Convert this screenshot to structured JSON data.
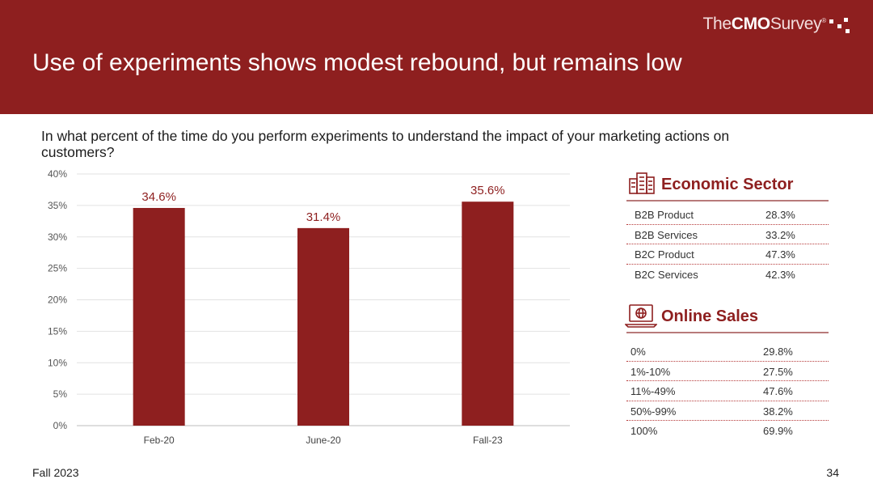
{
  "header": {
    "brand_the": "The",
    "brand_cmo": "CMO",
    "brand_survey": "Survey",
    "brand_reg": "®",
    "title": "Use of experiments shows modest rebound, but remains low"
  },
  "question": "In what percent of the time do you perform experiments to understand the impact of your marketing actions on customers?",
  "chart_data": {
    "type": "bar",
    "categories": [
      "Feb-20",
      "June-20",
      "Fall-23"
    ],
    "values": [
      34.6,
      31.4,
      35.6
    ],
    "data_labels": [
      "34.6%",
      "31.4%",
      "35.6%"
    ],
    "ylim": [
      0,
      40
    ],
    "yticks": [
      0,
      5,
      10,
      15,
      20,
      25,
      30,
      35,
      40
    ],
    "ytick_labels": [
      "0%",
      "5%",
      "10%",
      "15%",
      "20%",
      "25%",
      "30%",
      "35%",
      "40%"
    ],
    "grid": true,
    "bar_color": "#8e1f1f",
    "label_color": "#8e1f1f"
  },
  "economic_sector": {
    "title": "Economic Sector",
    "icon": "buildings-icon",
    "rows": [
      {
        "label": "B2B Product",
        "value": "28.3%"
      },
      {
        "label": "B2B Services",
        "value": "33.2%"
      },
      {
        "label": "B2C Product",
        "value": "47.3%"
      },
      {
        "label": "B2C Services",
        "value": "42.3%"
      }
    ]
  },
  "online_sales": {
    "title": "Online Sales",
    "icon": "laptop-globe-icon",
    "rows": [
      {
        "label": "0%",
        "value": "29.8%"
      },
      {
        "label": "1%-10%",
        "value": "27.5%"
      },
      {
        "label": "11%-49%",
        "value": "47.6%"
      },
      {
        "label": "50%-99%",
        "value": "38.2%"
      },
      {
        "label": "100%",
        "value": "69.9%"
      }
    ]
  },
  "footer": {
    "left": "Fall 2023",
    "page_number": "34"
  },
  "colors": {
    "brand_red": "#8e1f1f",
    "divider": "#b63a3a"
  }
}
